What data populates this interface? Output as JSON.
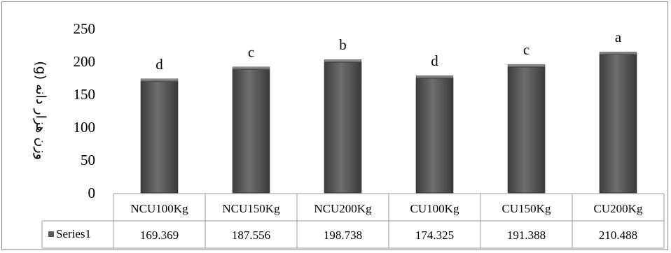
{
  "chart_data": {
    "type": "bar",
    "categories": [
      "NCU100Kg",
      "NCU150Kg",
      "NCU200Kg",
      "CU100Kg",
      "CU150Kg",
      "CU200Kg"
    ],
    "series": [
      {
        "name": "Series1",
        "values": [
          169.369,
          187.556,
          198.738,
          174.325,
          191.388,
          210.488
        ],
        "value_labels": [
          "169.369",
          "187.556",
          "198.738",
          "174.325",
          "191.388",
          "210.488"
        ]
      }
    ],
    "significance_letters": [
      "d",
      "c",
      "b",
      "d",
      "c",
      "a"
    ],
    "ylabel": "وزن هزار دانه (g)",
    "ylim": [
      0,
      250
    ],
    "yticks": [
      0,
      50,
      100,
      150,
      200,
      250
    ],
    "ytick_labels": [
      "0",
      "50",
      "100",
      "150",
      "200",
      "250"
    ],
    "grid": false,
    "data_table": true,
    "legend": "in data table",
    "bar_color": "#595959"
  }
}
